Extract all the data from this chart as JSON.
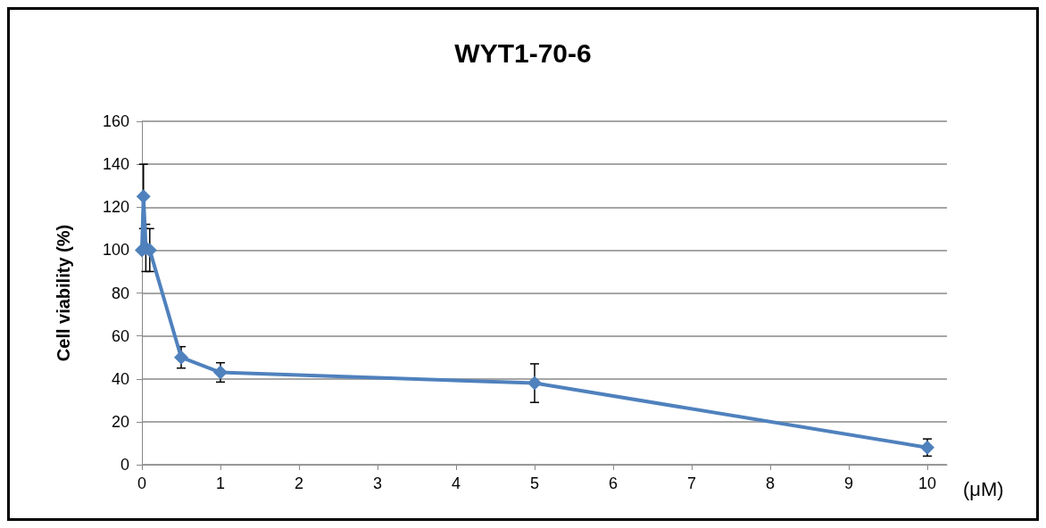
{
  "chart_data": {
    "type": "line",
    "title": "WYT1-70-6",
    "xlabel": "(μM)",
    "ylabel": "Cell viability (%)",
    "x": [
      0,
      0.02,
      0.05,
      0.1,
      0.5,
      1,
      5,
      10
    ],
    "series": [
      {
        "color": "#4f81bd",
        "values": [
          100,
          125,
          101,
          100,
          50,
          43,
          38,
          8
        ],
        "errors": [
          null,
          15,
          11,
          10,
          5,
          4.5,
          9,
          4
        ]
      }
    ],
    "xlim": [
      0,
      10.25
    ],
    "xticks": [
      0,
      1,
      2,
      3,
      4,
      5,
      6,
      7,
      8,
      9,
      10
    ],
    "ylim": [
      0,
      160
    ],
    "yticks": [
      0,
      20,
      40,
      60,
      80,
      100,
      120,
      140,
      160
    ],
    "grid": "y",
    "marker": "diamond",
    "line_style": "solid"
  }
}
